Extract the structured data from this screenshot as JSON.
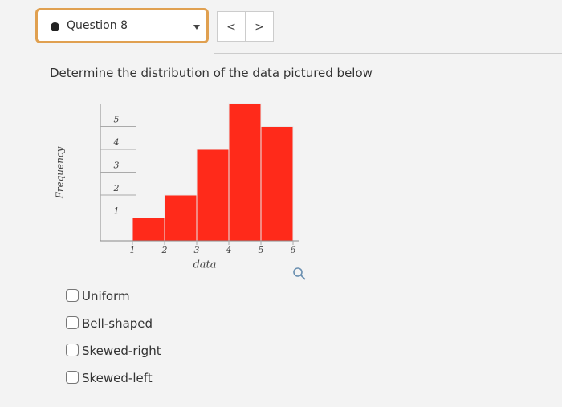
{
  "header": {
    "question_label": "Question 8",
    "prev": "<",
    "next": ">"
  },
  "question": "Determine the distribution of the data pictured below",
  "chart_data": {
    "type": "histogram",
    "bins": [
      1,
      2,
      3,
      4,
      5,
      6
    ],
    "values": [
      1,
      2,
      4,
      6,
      5
    ],
    "color": "#ff2a1a",
    "xlabel": "data",
    "ylabel": "Frequency",
    "xlim": [
      0,
      6.2
    ],
    "ylim": [
      0,
      6
    ],
    "xticks": [
      1,
      2,
      3,
      4,
      5,
      6
    ],
    "yticks": [
      1,
      2,
      3,
      4,
      5
    ]
  },
  "options": [
    "Uniform",
    "Bell-shaped",
    "Skewed-right",
    "Skewed-left"
  ]
}
